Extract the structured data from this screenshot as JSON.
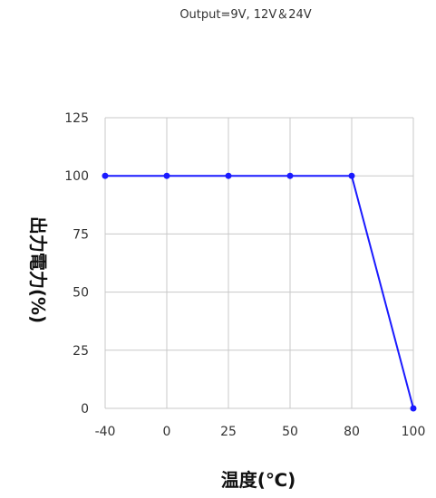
{
  "chart_data": {
    "type": "line",
    "title": "Output=9V, 12V＆24V",
    "xlabel": "温度(℃)",
    "ylabel": "出力電力(%)",
    "x_categories": [
      "-40",
      "0",
      "25",
      "50",
      "80",
      "100"
    ],
    "ylim": [
      0,
      125
    ],
    "y_ticks": [
      0,
      25,
      50,
      75,
      100,
      125
    ],
    "grid": true,
    "series": [
      {
        "values": [
          100,
          100,
          100,
          100,
          100,
          0
        ],
        "color": "#1a1aff"
      }
    ]
  }
}
